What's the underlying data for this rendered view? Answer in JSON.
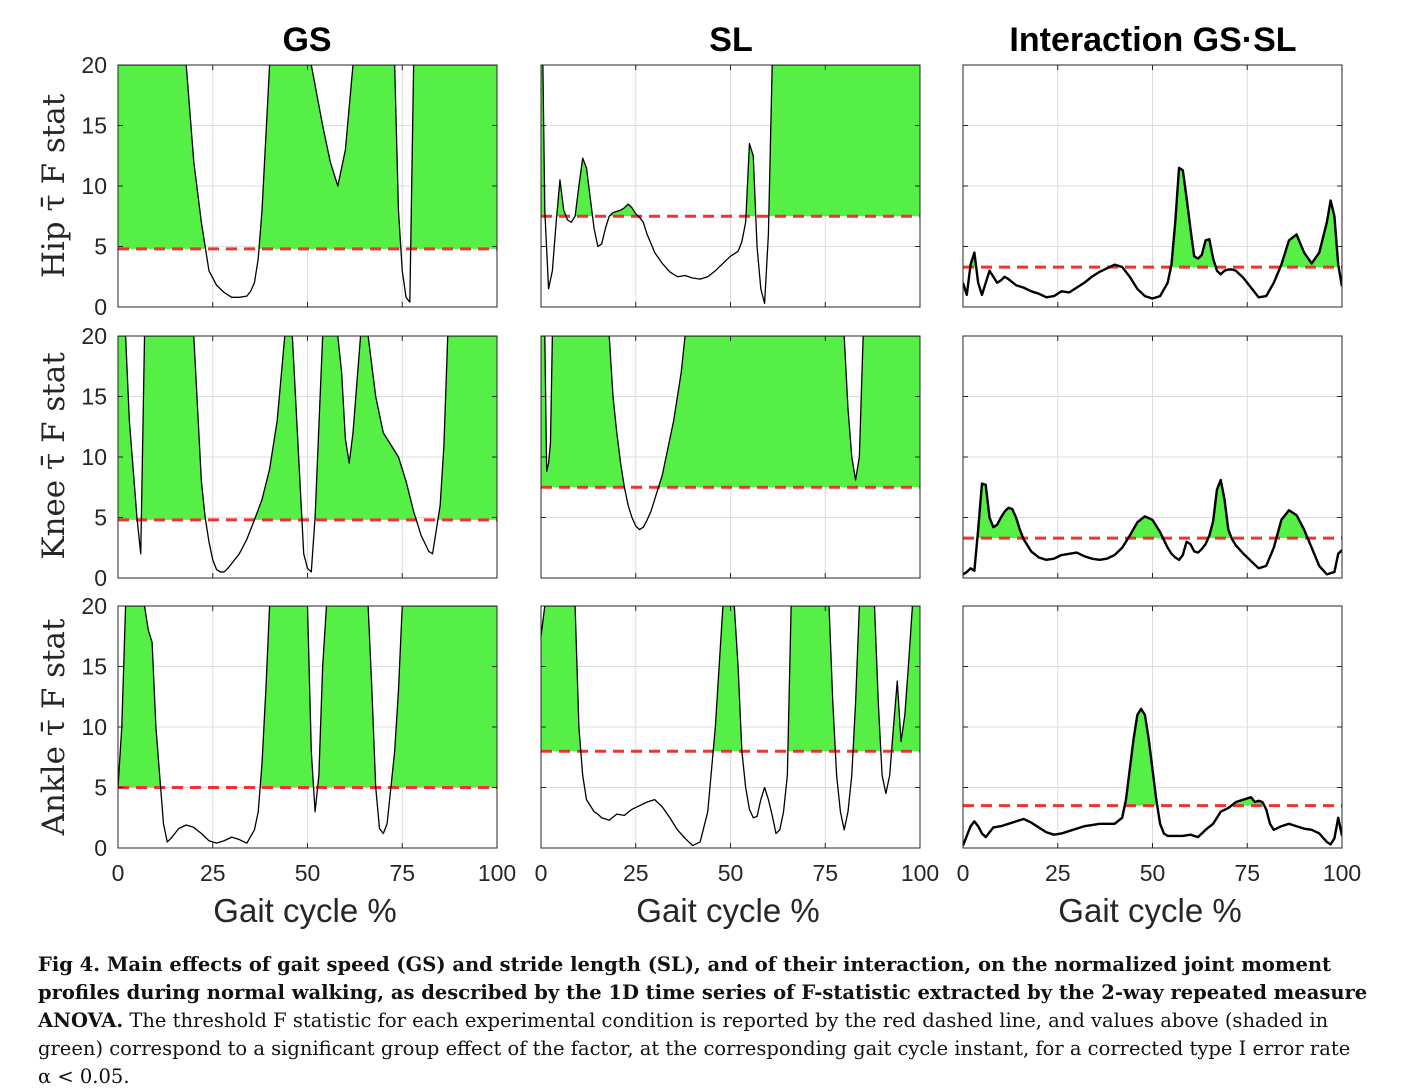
{
  "colors": {
    "significant": "#55ef45",
    "threshold": "#ee3333",
    "curve": "#000000"
  },
  "column_titles": [
    "GS",
    "SL",
    "Interaction GS·SL"
  ],
  "row_labels": [
    "Hip τ̄ F stat",
    "Knee τ̄ F stat",
    "Ankle τ̄ F stat"
  ],
  "xlabel": "Gait cycle %",
  "caption": {
    "bold": "Fig 4. Main effects of gait speed (GS) and stride length (SL), and of their interaction, on the normalized joint moment profiles during normal walking, as described by the 1D time series of F-statistic extracted by the 2-way repeated measure ANOVA.",
    "normal": "The threshold F statistic for each experimental condition is reported by the red dashed line, and values above (shaded in green) correspond to a significant group effect of the factor, at the corresponding gait cycle instant, for a corrected type I error rate α < 0.05."
  },
  "chart_data": [
    {
      "type": "area",
      "row": "Hip",
      "column": "GS",
      "xlim": [
        0,
        100
      ],
      "ylim": [
        0,
        20
      ],
      "xticks": [
        0,
        25,
        50,
        75,
        100
      ],
      "yticks": [
        0,
        5,
        10,
        15,
        20
      ],
      "threshold": 4.8,
      "x": [
        0,
        18,
        20,
        22,
        24,
        26,
        28,
        30,
        32,
        34,
        35,
        36,
        37,
        38,
        39,
        40,
        51,
        54,
        56,
        58,
        60,
        62,
        73,
        74,
        75,
        76,
        77,
        78,
        100
      ],
      "y": [
        20,
        20,
        12,
        7,
        3,
        1.8,
        1.2,
        0.8,
        0.8,
        0.9,
        1.3,
        2,
        4,
        8,
        14,
        20,
        20,
        15,
        12,
        10,
        13,
        20,
        20,
        8,
        3,
        0.8,
        0.4,
        20,
        20
      ]
    },
    {
      "type": "area",
      "row": "Hip",
      "column": "SL",
      "xlim": [
        0,
        100
      ],
      "ylim": [
        0,
        20
      ],
      "xticks": [
        0,
        25,
        50,
        75,
        100
      ],
      "yticks": [
        0,
        5,
        10,
        15,
        20
      ],
      "threshold": 7.5,
      "x": [
        0,
        0.5,
        1,
        2,
        3,
        4,
        5,
        6,
        7,
        8,
        9,
        10,
        11,
        12,
        13,
        14,
        15,
        16,
        17,
        18,
        19,
        20,
        21,
        22,
        23,
        24,
        25,
        26,
        27,
        28,
        30,
        32,
        34,
        36,
        38,
        40,
        42,
        44,
        46,
        48,
        50,
        52,
        53,
        54,
        55,
        56,
        57,
        58,
        59,
        60,
        61,
        62,
        63,
        64,
        65,
        66,
        67,
        68,
        69,
        70,
        71,
        72,
        73,
        74,
        75,
        76,
        77,
        78,
        79,
        80,
        81,
        82,
        83,
        84,
        85,
        86,
        87,
        88,
        89,
        90,
        91,
        92,
        93,
        94,
        95,
        96,
        97,
        98,
        99,
        100
      ],
      "y": [
        20,
        20,
        8,
        1.5,
        3,
        7,
        10.5,
        8,
        7.2,
        7,
        7.5,
        10,
        12.3,
        11.5,
        9,
        6.5,
        5,
        5.2,
        6.5,
        7.5,
        7.8,
        7.9,
        8,
        8.2,
        8.5,
        8.2,
        7.7,
        7.4,
        7,
        6,
        4.5,
        3.6,
        2.9,
        2.5,
        2.6,
        2.4,
        2.3,
        2.5,
        3,
        3.6,
        4.2,
        4.6,
        5.4,
        7,
        13.5,
        12.5,
        5,
        1.5,
        0.3,
        6,
        20,
        20,
        20,
        20,
        20,
        20,
        20,
        20,
        20,
        20,
        20,
        20,
        20,
        20,
        20,
        20,
        20,
        20,
        20,
        20,
        20,
        20,
        20,
        20,
        20,
        20,
        20,
        20,
        20,
        20,
        20,
        20,
        20,
        20,
        20,
        20,
        20,
        20,
        20,
        20
      ]
    },
    {
      "type": "area",
      "row": "Hip",
      "column": "Interaction GS·SL",
      "xlim": [
        0,
        100
      ],
      "ylim": [
        0,
        20
      ],
      "xticks": [
        0,
        25,
        50,
        75,
        100
      ],
      "yticks": [
        0,
        5,
        10,
        15,
        20
      ],
      "threshold": 3.3,
      "x": [
        0,
        1,
        2,
        3,
        4,
        5,
        6,
        7,
        8,
        9,
        10,
        11,
        12,
        14,
        16,
        18,
        20,
        22,
        24,
        26,
        28,
        30,
        32,
        34,
        36,
        38,
        40,
        42,
        44,
        46,
        48,
        50,
        52,
        54,
        55,
        56,
        57,
        58,
        59,
        60,
        61,
        62,
        63,
        64,
        65,
        66,
        67,
        68,
        69,
        70,
        71,
        72,
        74,
        76,
        78,
        80,
        82,
        84,
        86,
        88,
        90,
        92,
        94,
        96,
        97,
        98,
        99,
        100
      ],
      "y": [
        2,
        1,
        3.5,
        4.5,
        2,
        1,
        2,
        3,
        2.5,
        2,
        2.2,
        2.5,
        2.3,
        1.8,
        1.6,
        1.3,
        1.1,
        0.8,
        0.9,
        1.3,
        1.2,
        1.6,
        2,
        2.5,
        2.9,
        3.2,
        3.5,
        3.3,
        2.5,
        1.5,
        0.9,
        0.7,
        0.9,
        2,
        3.5,
        7,
        11.5,
        11.3,
        9,
        6.5,
        4.2,
        4,
        4.3,
        5.5,
        5.6,
        4,
        3,
        2.7,
        3,
        3.1,
        3.1,
        3,
        2.4,
        1.6,
        0.8,
        0.9,
        2,
        3.5,
        5.5,
        6,
        4.5,
        3.6,
        4.5,
        7,
        8.8,
        7.5,
        3.5,
        1.7
      ]
    },
    {
      "type": "area",
      "row": "Knee",
      "column": "GS",
      "xlim": [
        0,
        100
      ],
      "ylim": [
        0,
        20
      ],
      "xticks": [
        0,
        25,
        50,
        75,
        100
      ],
      "yticks": [
        0,
        5,
        10,
        15,
        20
      ],
      "threshold": 4.8,
      "x": [
        0,
        2,
        3,
        4,
        5,
        6,
        7,
        20,
        21,
        22,
        23,
        24,
        25,
        26,
        27,
        28,
        29,
        30,
        32,
        34,
        36,
        38,
        40,
        42,
        44,
        46,
        48,
        49,
        50,
        51,
        52,
        54,
        56,
        58,
        59,
        60,
        61,
        62,
        64,
        66,
        68,
        70,
        72,
        74,
        76,
        78,
        80,
        82,
        83,
        84,
        85,
        86,
        87,
        88,
        100
      ],
      "y": [
        20,
        20,
        13,
        9,
        5,
        2,
        20,
        20,
        14,
        8,
        5,
        3,
        1.5,
        0.7,
        0.5,
        0.5,
        0.8,
        1.2,
        2,
        3.2,
        4.8,
        6.5,
        9,
        13,
        20,
        20,
        8,
        2,
        0.8,
        0.5,
        5,
        20,
        20,
        20,
        17,
        11.5,
        9.5,
        12,
        20,
        20,
        15,
        12,
        11,
        10,
        8,
        5.5,
        3.5,
        2.2,
        2,
        4,
        6,
        11,
        20,
        20,
        20
      ]
    },
    {
      "type": "area",
      "row": "Knee",
      "column": "SL",
      "xlim": [
        0,
        100
      ],
      "ylim": [
        0,
        20
      ],
      "xticks": [
        0,
        25,
        50,
        75,
        100
      ],
      "yticks": [
        0,
        5,
        10,
        15,
        20
      ],
      "threshold": 7.5,
      "x": [
        0,
        1,
        1.5,
        2,
        2.5,
        3,
        18,
        19,
        20,
        21,
        22,
        23,
        24,
        25,
        26,
        27,
        28,
        29,
        30,
        31,
        32,
        33,
        34,
        35,
        36,
        37,
        38,
        39,
        40,
        41,
        42,
        43,
        44,
        45,
        46,
        47,
        48,
        49,
        50,
        70,
        80,
        81,
        82,
        83,
        84,
        85,
        86,
        87,
        88,
        89,
        90,
        91,
        92,
        93,
        94,
        95,
        96,
        97,
        98,
        99,
        100
      ],
      "y": [
        20,
        20,
        8.8,
        9.5,
        11.2,
        20,
        20,
        15,
        12,
        9.5,
        7.5,
        6,
        5,
        4.3,
        4,
        4.2,
        4.8,
        5.5,
        6.5,
        7.5,
        8.5,
        10,
        11.5,
        13,
        15,
        17,
        20,
        20,
        20,
        20,
        20,
        20,
        20,
        20,
        20,
        20,
        20,
        20,
        20,
        20,
        20,
        14,
        10,
        8.1,
        10,
        20,
        20,
        20,
        20,
        20,
        20,
        20,
        20,
        20,
        20,
        20,
        20,
        20,
        20,
        20,
        20
      ]
    },
    {
      "type": "area",
      "row": "Knee",
      "column": "Interaction GS·SL",
      "xlim": [
        0,
        100
      ],
      "ylim": [
        0,
        20
      ],
      "xticks": [
        0,
        25,
        50,
        75,
        100
      ],
      "yticks": [
        0,
        5,
        10,
        15,
        20
      ],
      "threshold": 3.3,
      "x": [
        0,
        1,
        2,
        3,
        4,
        5,
        6,
        7,
        8,
        9,
        10,
        11,
        12,
        13,
        14,
        15,
        16,
        18,
        20,
        22,
        24,
        26,
        28,
        30,
        32,
        34,
        36,
        38,
        40,
        42,
        44,
        46,
        48,
        50,
        52,
        54,
        55,
        56,
        57,
        58,
        59,
        60,
        61,
        62,
        63,
        64,
        65,
        66,
        67,
        68,
        69,
        70,
        71,
        72,
        74,
        76,
        78,
        80,
        82,
        84,
        86,
        88,
        90,
        92,
        94,
        96,
        98,
        99,
        100
      ],
      "y": [
        0.3,
        0.5,
        0.8,
        0.6,
        4,
        7.8,
        7.7,
        5,
        4.2,
        4.4,
        5,
        5.5,
        5.8,
        5.7,
        5,
        4,
        3.2,
        2.2,
        1.7,
        1.5,
        1.6,
        1.9,
        2,
        2.1,
        1.8,
        1.6,
        1.5,
        1.6,
        1.9,
        2.5,
        3.5,
        4.6,
        5.1,
        4.8,
        3.8,
        2.5,
        2,
        1.7,
        1.5,
        1.9,
        3,
        2.8,
        2.2,
        2.1,
        2.4,
        2.8,
        3.5,
        4.7,
        7.3,
        8.1,
        6.5,
        4,
        3.2,
        2.7,
        2,
        1.4,
        0.8,
        1,
        2.5,
        4.8,
        5.6,
        5.2,
        4,
        2.5,
        1,
        0.3,
        0.5,
        2,
        2.3
      ]
    },
    {
      "type": "area",
      "row": "Ankle",
      "column": "GS",
      "xlim": [
        0,
        100
      ],
      "ylim": [
        0,
        20
      ],
      "xticks": [
        0,
        25,
        50,
        75,
        100
      ],
      "yticks": [
        0,
        5,
        10,
        15,
        20
      ],
      "threshold": 5.0,
      "x": [
        0,
        1,
        2,
        3,
        4,
        5,
        6,
        7,
        8,
        9,
        10,
        11,
        12,
        13,
        14,
        15,
        16,
        18,
        20,
        22,
        24,
        26,
        28,
        30,
        32,
        34,
        36,
        37,
        38,
        39,
        40,
        41,
        42,
        50,
        51,
        52,
        53,
        54,
        55,
        56,
        57,
        58,
        59,
        60,
        61,
        62,
        63,
        64,
        65,
        66,
        67,
        68,
        69,
        70,
        71,
        72,
        73,
        74,
        75,
        76,
        77,
        78,
        79,
        80,
        81,
        82,
        83,
        84,
        85,
        86,
        87,
        88,
        89,
        90,
        91,
        92,
        93,
        94,
        95,
        96,
        97,
        98,
        99,
        100
      ],
      "y": [
        5,
        10,
        20,
        20,
        20,
        20,
        20,
        20,
        18,
        17,
        10,
        6,
        2,
        0.5,
        0.8,
        1.2,
        1.6,
        1.9,
        1.7,
        1.2,
        0.6,
        0.4,
        0.6,
        0.9,
        0.7,
        0.4,
        1.5,
        3,
        7,
        13,
        20,
        20,
        20,
        20,
        8,
        3,
        6,
        15,
        20,
        20,
        20,
        20,
        20,
        20,
        20,
        20,
        20,
        20,
        20,
        20,
        13,
        5,
        1.6,
        1.2,
        2,
        5,
        8,
        13,
        20,
        20,
        20,
        20,
        20,
        20,
        20,
        20,
        20,
        20,
        20,
        20,
        20,
        20,
        20,
        20,
        20,
        20,
        20,
        20,
        20,
        20,
        20,
        20,
        20,
        20
      ]
    },
    {
      "type": "area",
      "row": "Ankle",
      "column": "SL",
      "xlim": [
        0,
        100
      ],
      "ylim": [
        0,
        20
      ],
      "xticks": [
        0,
        25,
        50,
        75,
        100
      ],
      "yticks": [
        0,
        5,
        10,
        15,
        20
      ],
      "threshold": 8.0,
      "x": [
        0,
        1,
        2,
        3,
        4,
        5,
        6,
        7,
        8,
        9,
        10,
        11,
        12,
        13,
        14,
        15,
        16,
        18,
        20,
        22,
        24,
        26,
        28,
        30,
        32,
        34,
        36,
        38,
        40,
        42,
        44,
        46,
        48,
        49,
        50,
        51,
        52,
        53,
        54,
        55,
        56,
        57,
        58,
        59,
        60,
        61,
        62,
        63,
        64,
        65,
        66,
        67,
        68,
        69,
        70,
        71,
        72,
        73,
        74,
        75,
        76,
        77,
        78,
        79,
        80,
        81,
        82,
        83,
        84,
        85,
        86,
        87,
        88,
        89,
        90,
        91,
        92,
        93,
        94,
        95,
        96,
        97,
        98,
        99,
        100
      ],
      "y": [
        17.5,
        20,
        20,
        20,
        20,
        20,
        20,
        20,
        20,
        20,
        10,
        6,
        4,
        3.5,
        3,
        2.8,
        2.5,
        2.3,
        2.8,
        2.7,
        3.2,
        3.5,
        3.8,
        4,
        3.4,
        2.5,
        1.5,
        0.8,
        0.2,
        0.5,
        3,
        10,
        20,
        20,
        20,
        20,
        15,
        8,
        5,
        3.2,
        2.5,
        2.6,
        4,
        5,
        4,
        2.7,
        1.2,
        1.5,
        3,
        6,
        20,
        20,
        20,
        20,
        20,
        20,
        20,
        20,
        20,
        20,
        20,
        12,
        6,
        3,
        1.5,
        3,
        6,
        12,
        20,
        20,
        20,
        20,
        20,
        12,
        6,
        4.5,
        6,
        10,
        13.8,
        8.8,
        11,
        15.3,
        20,
        20,
        20
      ]
    },
    {
      "type": "area",
      "row": "Ankle",
      "column": "Interaction GS·SL",
      "xlim": [
        0,
        100
      ],
      "ylim": [
        0,
        20
      ],
      "xticks": [
        0,
        25,
        50,
        75,
        100
      ],
      "yticks": [
        0,
        5,
        10,
        15,
        20
      ],
      "threshold": 3.5,
      "x": [
        0,
        1,
        2,
        3,
        4,
        5,
        6,
        7,
        8,
        10,
        12,
        14,
        16,
        18,
        20,
        22,
        24,
        26,
        28,
        30,
        32,
        34,
        36,
        38,
        40,
        42,
        43,
        44,
        45,
        46,
        47,
        48,
        49,
        50,
        51,
        52,
        53,
        54,
        55,
        56,
        58,
        60,
        62,
        64,
        66,
        68,
        70,
        72,
        74,
        76,
        77,
        78,
        79,
        80,
        81,
        82,
        84,
        86,
        88,
        90,
        92,
        94,
        96,
        97,
        98,
        99,
        100
      ],
      "y": [
        0.2,
        1,
        1.8,
        2.2,
        1.8,
        1.2,
        0.9,
        1.3,
        1.7,
        1.8,
        2,
        2.2,
        2.4,
        2.1,
        1.7,
        1.3,
        1.1,
        1.2,
        1.4,
        1.6,
        1.8,
        1.9,
        2,
        2,
        2,
        2.5,
        4,
        6.5,
        9,
        11,
        11.5,
        11,
        9,
        6.5,
        4,
        2,
        1.2,
        1,
        1,
        1,
        1,
        1.1,
        0.9,
        1.5,
        2,
        3,
        3.3,
        3.8,
        4,
        4.2,
        3.8,
        3.9,
        3.8,
        3.2,
        2,
        1.5,
        1.8,
        2,
        1.8,
        1.6,
        1.5,
        1.2,
        0.5,
        0.3,
        0.8,
        2.5,
        1
      ]
    }
  ]
}
